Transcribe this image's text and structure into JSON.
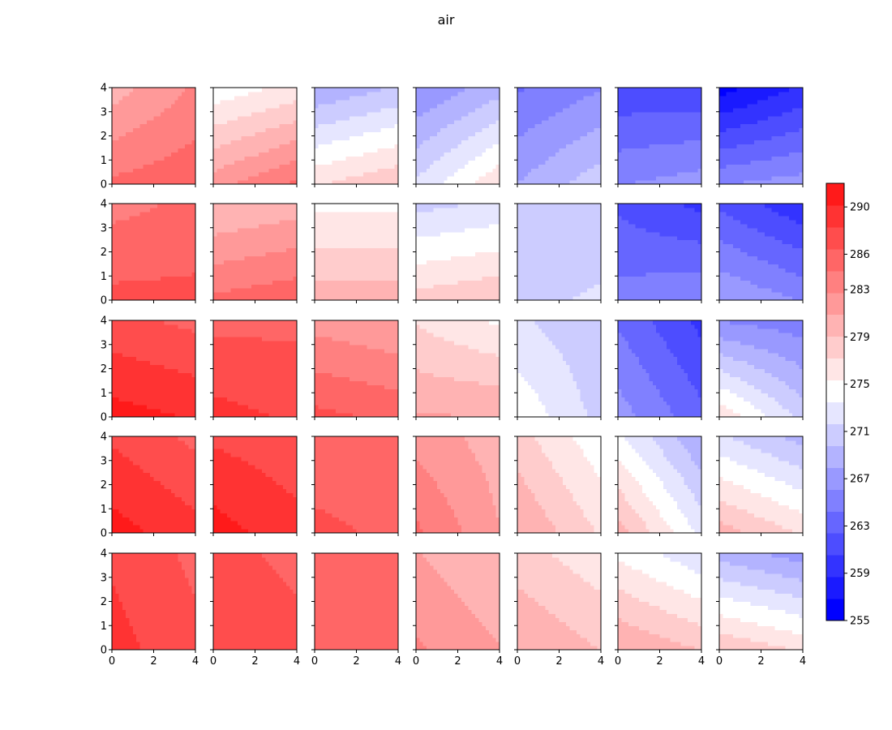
{
  "chart_data": {
    "type": "heatmap",
    "title": "air",
    "layout": {
      "rows": 5,
      "cols": 7
    },
    "x_ticks": [
      0,
      2,
      4
    ],
    "y_ticks": [
      0,
      1,
      2,
      3,
      4
    ],
    "xlim": [
      0,
      4
    ],
    "ylim": [
      0,
      4
    ],
    "colorbar": {
      "min": 255,
      "max": 292,
      "tick_values": [
        255,
        259,
        263,
        267,
        271,
        275,
        279,
        283,
        286,
        290
      ],
      "tick_labels": [
        "255",
        "259",
        "263",
        "267",
        "271",
        "275",
        "279",
        "283",
        "286",
        "290"
      ],
      "colors": [
        "#0000ff",
        "#1a1aff",
        "#3333ff",
        "#4d4dff",
        "#6666ff",
        "#8080ff",
        "#9999ff",
        "#b3b3ff",
        "#ccccff",
        "#e6e6ff",
        "#ffffff",
        "#ffe6e6",
        "#ffcccc",
        "#ffb3b3",
        "#ff9999",
        "#ff8080",
        "#ff6666",
        "#ff4d4d",
        "#ff3333",
        "#ff1a1a"
      ]
    },
    "panels": [
      [
        {
          "bl": 285,
          "br": 286,
          "tl": 280,
          "tr": 283
        },
        {
          "bl": 282,
          "br": 285,
          "tl": 274,
          "tr": 276
        },
        {
          "bl": 277,
          "br": 279,
          "tl": 268,
          "tr": 270
        },
        {
          "bl": 272,
          "br": 277,
          "tl": 266,
          "tr": 269
        },
        {
          "bl": 268,
          "br": 271,
          "tl": 264,
          "tr": 266
        },
        {
          "bl": 266,
          "br": 267,
          "tl": 261,
          "tr": 261
        },
        {
          "bl": 266,
          "br": 267,
          "tl": 256,
          "tr": 259
        }
      ],
      [
        {
          "bl": 287,
          "br": 287,
          "tl": 284,
          "tr": 285
        },
        {
          "bl": 285,
          "br": 286,
          "tl": 279,
          "tr": 280
        },
        {
          "bl": 280,
          "br": 280,
          "tl": 275,
          "tr": 275
        },
        {
          "bl": 278,
          "br": 279,
          "tl": 271,
          "tr": 272
        },
        {
          "bl": 271,
          "br": 272,
          "tl": 270,
          "tr": 270
        },
        {
          "bl": 265,
          "br": 266,
          "tl": 262,
          "tr": 260
        },
        {
          "bl": 268,
          "br": 266,
          "tl": 262,
          "tr": 259
        }
      ],
      [
        {
          "bl": 291,
          "br": 290,
          "tl": 287,
          "tr": 286
        },
        {
          "bl": 289,
          "br": 288,
          "tl": 286,
          "tr": 286
        },
        {
          "bl": 287,
          "br": 286,
          "tl": 282,
          "tr": 281
        },
        {
          "bl": 281,
          "br": 281,
          "tl": 277,
          "tr": 275
        },
        {
          "bl": 275,
          "br": 271,
          "tl": 272,
          "tr": 270
        },
        {
          "bl": 267,
          "br": 263,
          "tl": 264,
          "tr": 260
        },
        {
          "bl": 277,
          "br": 271,
          "tl": 266,
          "tr": 265
        }
      ],
      [
        {
          "bl": 291,
          "br": 289,
          "tl": 288,
          "tr": 286
        },
        {
          "bl": 291,
          "br": 289,
          "tl": 288,
          "tr": 287
        },
        {
          "bl": 287,
          "br": 286,
          "tl": 285,
          "tr": 285
        },
        {
          "bl": 285,
          "br": 281,
          "tl": 282,
          "tr": 280
        },
        {
          "bl": 281,
          "br": 277,
          "tl": 278,
          "tr": 274
        },
        {
          "bl": 280,
          "br": 273,
          "tl": 274,
          "tr": 268
        },
        {
          "bl": 280,
          "br": 277,
          "tl": 272,
          "tr": 269
        }
      ],
      [
        {
          "bl": 289,
          "br": 287,
          "tl": 288,
          "tr": 286
        },
        {
          "bl": 288,
          "br": 287,
          "tl": 287,
          "tr": 286
        },
        {
          "bl": 286,
          "br": 286,
          "tl": 285,
          "tr": 285
        },
        {
          "bl": 283,
          "br": 281,
          "tl": 281,
          "tr": 279
        },
        {
          "bl": 281,
          "br": 279,
          "tl": 278,
          "tr": 276
        },
        {
          "bl": 281,
          "br": 279,
          "tl": 275,
          "tr": 272
        },
        {
          "bl": 279,
          "br": 277,
          "tl": 269,
          "tr": 267
        }
      ]
    ]
  }
}
